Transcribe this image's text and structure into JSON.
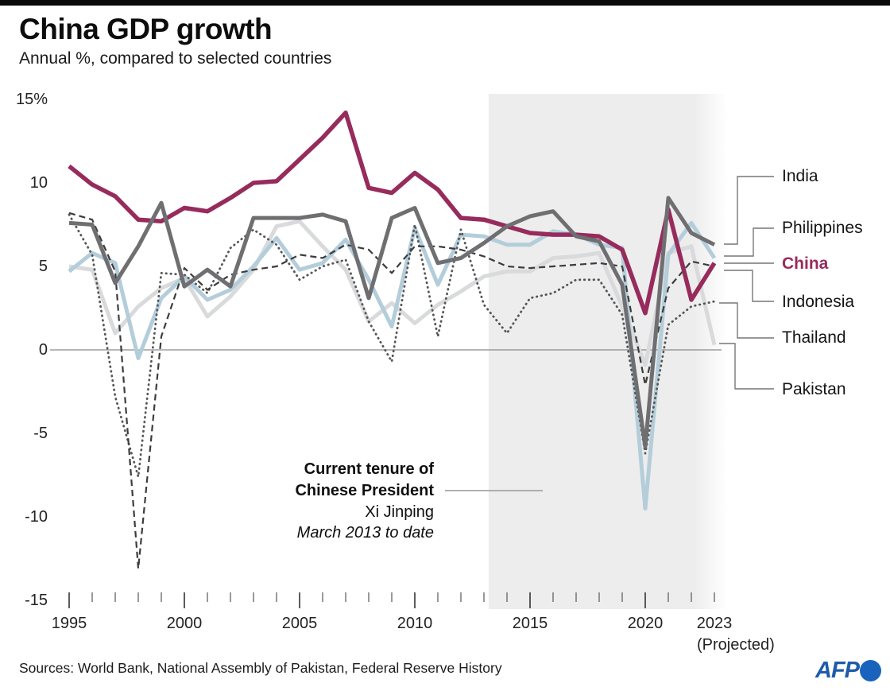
{
  "header": {
    "title": "China GDP growth",
    "subtitle": "Annual %, compared to selected countries"
  },
  "chart_data": {
    "type": "line",
    "title": "China GDP growth",
    "subtitle": "Annual %, compared to selected countries",
    "xlabel": "",
    "ylabel": "Annual %",
    "ylim": [
      -15,
      15
    ],
    "grid": "off",
    "legend_position": "right-outside",
    "years": [
      1995,
      1996,
      1997,
      1998,
      1999,
      2000,
      2001,
      2002,
      2003,
      2004,
      2005,
      2006,
      2007,
      2008,
      2009,
      2010,
      2011,
      2012,
      2013,
      2014,
      2015,
      2016,
      2017,
      2018,
      2019,
      2020,
      2021,
      2022,
      2023
    ],
    "x_tick_labels": [
      1995,
      2000,
      2005,
      2010,
      2015,
      2020,
      2023
    ],
    "projected_note": "(Projected)",
    "y_ticks": [
      {
        "label": "15%",
        "value": 15
      },
      {
        "label": "10",
        "value": 10
      },
      {
        "label": "5",
        "value": 5
      },
      {
        "label": "0",
        "value": 0
      },
      {
        "label": "-5",
        "value": -5
      },
      {
        "label": "-10",
        "value": -10
      },
      {
        "label": "-15",
        "value": -15
      }
    ],
    "series": [
      {
        "name": "Pakistan",
        "color": "#d8dadb",
        "width": 5,
        "dash": null,
        "linecap": "butt",
        "values": [
          5.0,
          4.8,
          1.0,
          2.6,
          3.7,
          4.3,
          2.0,
          3.2,
          4.8,
          7.4,
          7.7,
          6.2,
          4.8,
          1.7,
          2.8,
          1.6,
          2.7,
          3.5,
          4.4,
          4.7,
          4.7,
          5.5,
          5.6,
          5.8,
          2.6,
          -0.9,
          5.8,
          6.2,
          0.3
        ]
      },
      {
        "name": "Philippines",
        "color": "#b4cdda",
        "width": 5,
        "dash": null,
        "linecap": "butt",
        "values": [
          4.7,
          5.8,
          5.2,
          -0.5,
          3.1,
          4.4,
          3.0,
          3.6,
          5.0,
          6.7,
          4.8,
          5.2,
          6.6,
          4.2,
          1.4,
          7.3,
          3.9,
          6.9,
          6.8,
          6.3,
          6.3,
          7.1,
          6.9,
          6.3,
          6.1,
          -9.5,
          5.7,
          7.6,
          5.5
        ]
      },
      {
        "name": "Thailand",
        "color": "#565658",
        "width": 2.8,
        "dash": "0.5 5.4",
        "linecap": "round",
        "values": [
          8.1,
          5.7,
          -2.8,
          -7.6,
          4.6,
          4.5,
          3.4,
          6.1,
          7.2,
          6.3,
          4.2,
          5.0,
          5.4,
          1.7,
          -0.7,
          7.5,
          0.8,
          7.2,
          2.7,
          1.0,
          3.1,
          3.4,
          4.2,
          4.2,
          2.1,
          -6.2,
          1.5,
          2.6,
          2.9
        ]
      },
      {
        "name": "Indonesia",
        "color": "#3c3c3e",
        "width": 2.2,
        "dash": "8 5",
        "linecap": "butt",
        "values": [
          8.2,
          7.8,
          4.7,
          -13.1,
          0.8,
          4.9,
          3.6,
          4.5,
          4.8,
          5.0,
          5.7,
          5.5,
          6.3,
          6.0,
          4.6,
          6.2,
          6.2,
          6.0,
          5.6,
          5.0,
          4.9,
          5.0,
          5.1,
          5.2,
          5.0,
          -2.1,
          3.7,
          5.3,
          5.0
        ]
      },
      {
        "name": "China",
        "color": "#972b5c",
        "width": 5.5,
        "dash": null,
        "linecap": "butt",
        "values": [
          11.0,
          9.9,
          9.2,
          7.8,
          7.7,
          8.5,
          8.3,
          9.1,
          10.0,
          10.1,
          11.4,
          12.7,
          14.2,
          9.7,
          9.4,
          10.6,
          9.6,
          7.9,
          7.8,
          7.4,
          7.0,
          6.9,
          6.9,
          6.8,
          6.0,
          2.2,
          8.4,
          3.0,
          5.2
        ]
      },
      {
        "name": "India",
        "color": "#6f6f72",
        "width": 5,
        "dash": null,
        "linecap": "butt",
        "values": [
          7.6,
          7.5,
          4.0,
          6.2,
          8.8,
          3.8,
          4.8,
          3.8,
          7.9,
          7.9,
          7.9,
          8.1,
          7.7,
          3.1,
          7.9,
          8.5,
          5.2,
          5.5,
          6.4,
          7.4,
          8.0,
          8.3,
          6.8,
          6.5,
          3.9,
          -5.8,
          9.1,
          7.0,
          6.3
        ]
      }
    ],
    "highlight_region": {
      "start_year": 2013.2,
      "end_year": 2023.55,
      "color": "#ededed"
    }
  },
  "annotation": {
    "line1": "Current tenure of",
    "line2": "Chinese President",
    "line3": "Xi Jinping",
    "line4": "March 2013 to date"
  },
  "footer": {
    "sources": "Sources: World Bank, National Assembly of Pakistan, Federal Reserve History",
    "logo": "AFP",
    "afp_blue": "#1e5cab",
    "afp_dot_blue": "#1a63bd"
  }
}
